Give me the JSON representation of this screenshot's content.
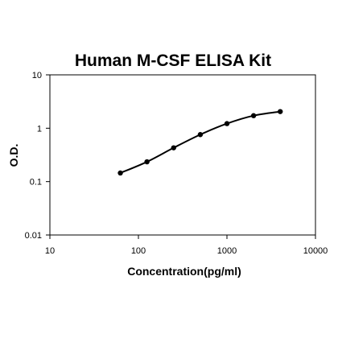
{
  "chart_data": {
    "type": "line",
    "title": "Human M-CSF ELISA Kit",
    "xlabel": "Concentration(pg/ml)",
    "ylabel": "O.D.",
    "x_scale": "log",
    "y_scale": "log",
    "xlim": [
      10,
      10000
    ],
    "ylim": [
      0.01,
      10
    ],
    "x_ticks": [
      "10",
      "100",
      "1000",
      "10000"
    ],
    "y_ticks": [
      "0.01",
      "0.1",
      "1",
      "10"
    ],
    "grid": false,
    "series": [
      {
        "x": [
          62.5,
          125,
          250,
          500,
          1000,
          2000,
          4000
        ],
        "y": [
          0.145,
          0.235,
          0.43,
          0.76,
          1.22,
          1.72,
          2.05
        ],
        "color": "#000000",
        "marker": "circle"
      }
    ]
  }
}
